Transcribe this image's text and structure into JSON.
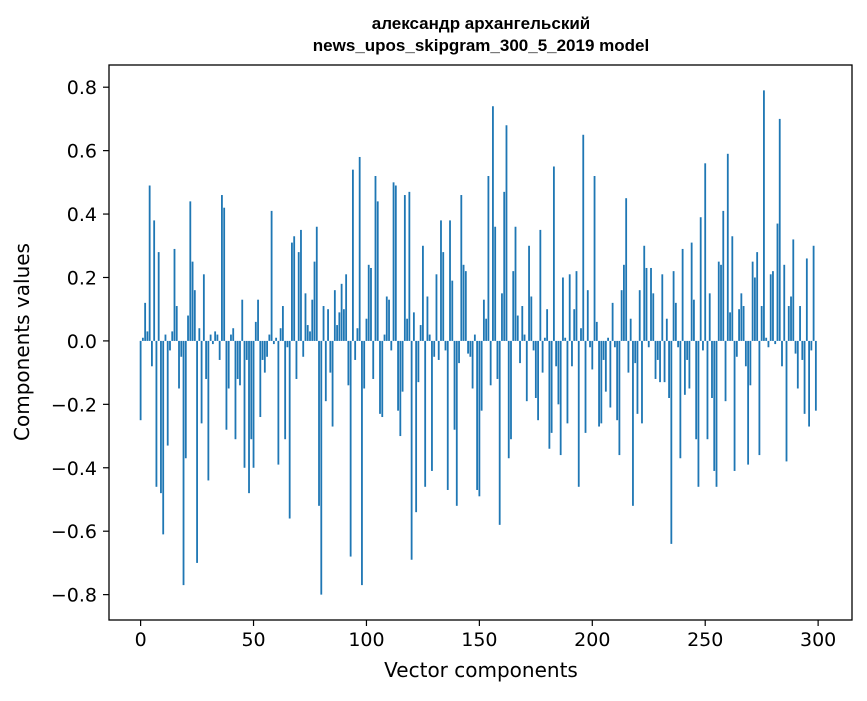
{
  "chart_data": {
    "type": "bar",
    "title_lines": [
      "александр архангельский",
      "news_upos_skipgram_300_5_2019 model"
    ],
    "xlabel": "Vector components",
    "ylabel": "Components values",
    "xlim": [
      -14,
      315
    ],
    "ylim": [
      -0.88,
      0.87
    ],
    "xticks": [
      0,
      50,
      100,
      150,
      200,
      250,
      300
    ],
    "xtick_labels": [
      "0",
      "50",
      "100",
      "150",
      "200",
      "250",
      "300"
    ],
    "yticks": [
      0.8,
      0.6,
      0.4,
      0.2,
      0.0,
      -0.2,
      -0.4,
      -0.6,
      -0.8
    ],
    "ytick_labels": [
      "0.8",
      "0.6",
      "0.4",
      "0.2",
      "0.0",
      "−0.2",
      "−0.4",
      "−0.6",
      "−0.8"
    ],
    "bar_color": "#1f77b4",
    "grid": false,
    "legend": "none",
    "x": [
      0,
      1,
      2,
      3,
      4,
      5,
      6,
      7,
      8,
      9,
      10,
      11,
      12,
      13,
      14,
      15,
      16,
      17,
      18,
      19,
      20,
      21,
      22,
      23,
      24,
      25,
      26,
      27,
      28,
      29,
      30,
      31,
      32,
      33,
      34,
      35,
      36,
      37,
      38,
      39,
      40,
      41,
      42,
      43,
      44,
      45,
      46,
      47,
      48,
      49,
      50,
      51,
      52,
      53,
      54,
      55,
      56,
      57,
      58,
      59,
      60,
      61,
      62,
      63,
      64,
      65,
      66,
      67,
      68,
      69,
      70,
      71,
      72,
      73,
      74,
      75,
      76,
      77,
      78,
      79,
      80,
      81,
      82,
      83,
      84,
      85,
      86,
      87,
      88,
      89,
      90,
      91,
      92,
      93,
      94,
      95,
      96,
      97,
      98,
      99,
      100,
      101,
      102,
      103,
      104,
      105,
      106,
      107,
      108,
      109,
      110,
      111,
      112,
      113,
      114,
      115,
      116,
      117,
      118,
      119,
      120,
      121,
      122,
      123,
      124,
      125,
      126,
      127,
      128,
      129,
      130,
      131,
      132,
      133,
      134,
      135,
      136,
      137,
      138,
      139,
      140,
      141,
      142,
      143,
      144,
      145,
      146,
      147,
      148,
      149,
      150,
      151,
      152,
      153,
      154,
      155,
      156,
      157,
      158,
      159,
      160,
      161,
      162,
      163,
      164,
      165,
      166,
      167,
      168,
      169,
      170,
      171,
      172,
      173,
      174,
      175,
      176,
      177,
      178,
      179,
      180,
      181,
      182,
      183,
      184,
      185,
      186,
      187,
      188,
      189,
      190,
      191,
      192,
      193,
      194,
      195,
      196,
      197,
      198,
      199,
      200,
      201,
      202,
      203,
      204,
      205,
      206,
      207,
      208,
      209,
      210,
      211,
      212,
      213,
      214,
      215,
      216,
      217,
      218,
      219,
      220,
      221,
      222,
      223,
      224,
      225,
      226,
      227,
      228,
      229,
      230,
      231,
      232,
      233,
      234,
      235,
      236,
      237,
      238,
      239,
      240,
      241,
      242,
      243,
      244,
      245,
      246,
      247,
      248,
      249,
      250,
      251,
      252,
      253,
      254,
      255,
      256,
      257,
      258,
      259,
      260,
      261,
      262,
      263,
      264,
      265,
      266,
      267,
      268,
      269,
      270,
      271,
      272,
      273,
      274,
      275,
      276,
      277,
      278,
      279,
      280,
      281,
      282,
      283,
      284,
      285,
      286,
      287,
      288,
      289,
      290,
      291,
      292,
      293,
      294,
      295,
      296,
      297,
      298,
      299
    ],
    "values": [
      -0.25,
      0.01,
      0.12,
      0.03,
      0.49,
      -0.08,
      0.38,
      -0.46,
      0.28,
      -0.48,
      -0.61,
      0.02,
      -0.33,
      -0.03,
      0.03,
      0.29,
      0.11,
      -0.15,
      -0.05,
      -0.77,
      -0.37,
      0.08,
      0.44,
      0.25,
      0.16,
      -0.7,
      0.04,
      -0.26,
      0.21,
      -0.12,
      -0.44,
      0.02,
      -0.01,
      0.03,
      0.02,
      -0.06,
      0.46,
      0.42,
      -0.28,
      -0.15,
      0.02,
      0.04,
      -0.31,
      -0.12,
      -0.14,
      0.13,
      -0.4,
      -0.06,
      -0.48,
      -0.31,
      -0.4,
      0.06,
      0.13,
      -0.24,
      -0.06,
      -0.1,
      -0.05,
      0.02,
      0.41,
      -0.01,
      0.01,
      -0.39,
      0.04,
      0.11,
      -0.31,
      -0.02,
      -0.56,
      0.31,
      0.33,
      -0.12,
      0.28,
      0.35,
      -0.05,
      0.15,
      0.05,
      0.03,
      0.13,
      0.25,
      0.36,
      -0.52,
      -0.8,
      0.11,
      -0.19,
      0.1,
      -0.1,
      -0.27,
      0.16,
      0.05,
      0.09,
      0.18,
      0.1,
      0.21,
      -0.14,
      -0.68,
      0.54,
      -0.06,
      0.04,
      0.58,
      -0.77,
      -0.15,
      0.07,
      0.24,
      0.23,
      -0.12,
      0.52,
      0.44,
      -0.23,
      -0.24,
      0.02,
      0.14,
      0.13,
      -0.03,
      0.5,
      0.49,
      -0.22,
      -0.3,
      -0.16,
      0.46,
      0.07,
      0.47,
      -0.69,
      0.09,
      -0.54,
      -0.13,
      0.05,
      0.3,
      -0.46,
      0.14,
      0.02,
      -0.41,
      -0.05,
      0.21,
      -0.06,
      0.38,
      0.28,
      -0.03,
      -0.47,
      0.38,
      0.19,
      -0.28,
      -0.52,
      -0.07,
      0.46,
      0.24,
      0.22,
      -0.04,
      -0.05,
      -0.15,
      0.02,
      -0.47,
      -0.49,
      -0.22,
      0.13,
      0.07,
      0.52,
      -0.14,
      0.74,
      0.36,
      -0.12,
      -0.58,
      0.15,
      0.47,
      0.68,
      -0.37,
      -0.31,
      0.22,
      0.36,
      0.08,
      -0.07,
      0.11,
      0.02,
      -0.19,
      0.3,
      0.14,
      -0.03,
      -0.18,
      -0.25,
      0.35,
      -0.1,
      0.01,
      0.1,
      -0.34,
      -0.29,
      0.55,
      -0.08,
      -0.2,
      -0.36,
      0.2,
      0.01,
      -0.26,
      0.21,
      -0.08,
      0.1,
      0.22,
      -0.46,
      0.04,
      0.65,
      -0.29,
      0.16,
      -0.02,
      -0.09,
      0.52,
      0.06,
      -0.27,
      -0.26,
      -0.06,
      -0.16,
      0.01,
      -0.21,
      0.12,
      -0.02,
      -0.25,
      -0.36,
      0.16,
      0.24,
      0.45,
      -0.1,
      0.07,
      -0.52,
      -0.07,
      -0.23,
      0.16,
      -0.26,
      0.3,
      0.23,
      -0.02,
      0.23,
      0.15,
      -0.12,
      -0.06,
      -0.13,
      0.21,
      -0.13,
      0.07,
      -0.18,
      -0.64,
      0.22,
      0.12,
      -0.02,
      -0.37,
      0.29,
      -0.17,
      -0.06,
      -0.15,
      0.31,
      0.13,
      -0.31,
      -0.46,
      0.39,
      -0.03,
      0.56,
      -0.31,
      0.15,
      -0.18,
      -0.41,
      -0.46,
      0.25,
      0.24,
      0.41,
      -0.19,
      0.59,
      0.09,
      0.33,
      -0.41,
      -0.05,
      0.1,
      0.15,
      0.11,
      -0.08,
      -0.39,
      -0.14,
      0.25,
      0.2,
      0.28,
      -0.36,
      0.11,
      0.79,
      0.01,
      -0.02,
      0.21,
      0.22,
      -0.01,
      0.37,
      0.7,
      -0.08,
      0.24,
      -0.38,
      0.11,
      0.14,
      0.32,
      -0.04,
      -0.15,
      0.11,
      -0.06,
      -0.23,
      0.26,
      -0.27,
      -0.03,
      0.3,
      -0.22
    ]
  }
}
